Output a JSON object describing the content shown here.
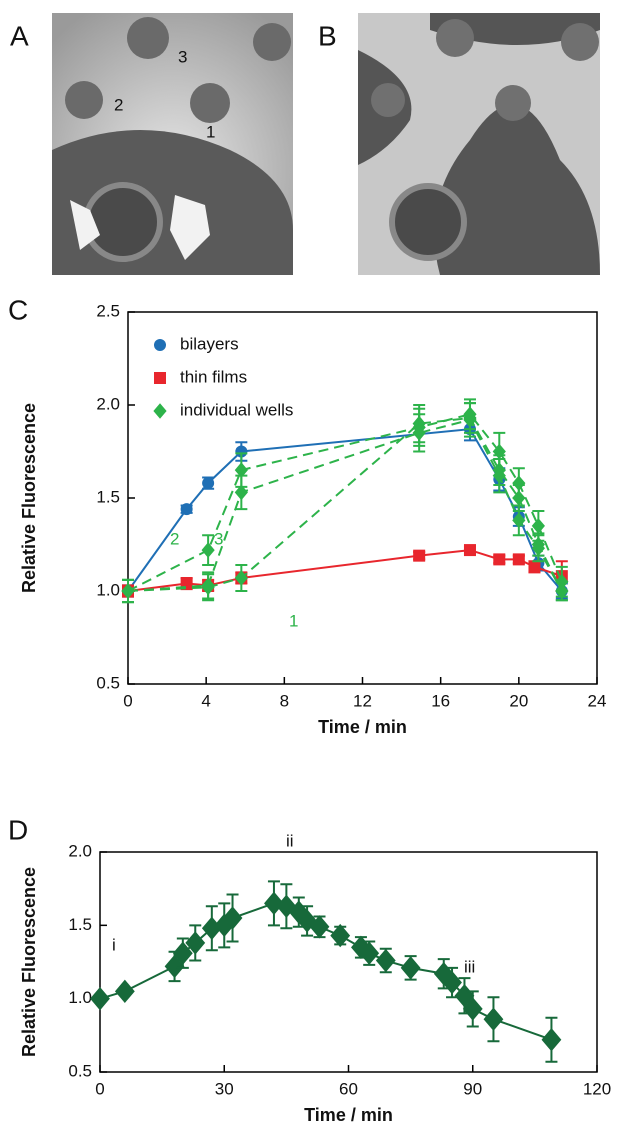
{
  "panels": {
    "a": "A",
    "b": "B",
    "c": "C",
    "d": "D"
  },
  "image_a_labels": [
    "3",
    "2",
    "1"
  ],
  "chart_data": [
    {
      "type": "line",
      "xlabel": "Time / min",
      "ylabel": "Relative Fluorescence",
      "xlim": [
        0,
        24
      ],
      "xticks": [
        0,
        4,
        8,
        12,
        16,
        20,
        24
      ],
      "ylim": [
        0.5,
        2.5
      ],
      "yticks": [
        0.5,
        {
          "value": 1,
          "label": "1.0"
        },
        1.5,
        {
          "value": 2,
          "label": "2.0"
        },
        2.5
      ],
      "legend": "upper left",
      "series": [
        {
          "name": "bilayers",
          "color": "#1f6fb5",
          "marker": "circle",
          "dashed": false,
          "lines": [
            {
              "x": [
                0,
                3,
                4.1,
                5.8,
                17.5,
                19,
                20,
                21,
                22.2
              ],
              "values": [
                1.0,
                1.44,
                1.58,
                1.75,
                1.87,
                1.6,
                1.4,
                1.15,
                1.0
              ],
              "errors": [
                0.03,
                0.02,
                0.03,
                0.05,
                0.06,
                0.06,
                0.05,
                0.04,
                0.04
              ]
            }
          ]
        },
        {
          "name": "thin films",
          "color": "#e8262d",
          "marker": "square",
          "dashed": false,
          "lines": [
            {
              "x": [
                0,
                3,
                4.1,
                5.8,
                14.9,
                17.5,
                19,
                20,
                20.8,
                22.2
              ],
              "values": [
                1.0,
                1.04,
                1.03,
                1.07,
                1.19,
                1.22,
                1.17,
                1.17,
                1.13,
                1.08
              ],
              "errors": [
                0.03,
                0.03,
                0.03,
                0.03,
                0.02,
                0.02,
                0.02,
                0.02,
                0.03,
                0.08
              ]
            }
          ]
        },
        {
          "name": "individual wells",
          "color": "#2db34a",
          "marker": "diamond",
          "dashed": true,
          "lines": [
            {
              "label": "1",
              "x": [
                0,
                4.1,
                5.8,
                14.9,
                17.5,
                19,
                20,
                21,
                22.2
              ],
              "values": [
                1.0,
                1.02,
                1.07,
                1.9,
                1.93,
                1.65,
                1.5,
                1.25,
                1.0
              ],
              "errors": [
                0.06,
                0.07,
                0.07,
                0.1,
                0.08,
                0.08,
                0.07,
                0.06,
                0.05
              ]
            },
            {
              "label": "2",
              "x": [
                0,
                4.1,
                5.8,
                14.9,
                17.5,
                19,
                20,
                21,
                22.2
              ],
              "values": [
                1.0,
                1.22,
                1.65,
                1.88,
                1.95,
                1.75,
                1.58,
                1.35,
                1.05
              ],
              "errors": [
                0.06,
                0.08,
                0.09,
                0.1,
                0.08,
                0.1,
                0.08,
                0.08,
                0.08
              ]
            },
            {
              "label": "3",
              "x": [
                0,
                4.1,
                5.8,
                14.9,
                17.5,
                19,
                20,
                21,
                22.2
              ],
              "values": [
                1.0,
                1.03,
                1.53,
                1.85,
                1.92,
                1.62,
                1.38,
                1.23,
                1.0
              ],
              "errors": [
                0.06,
                0.07,
                0.09,
                0.1,
                0.09,
                0.09,
                0.08,
                0.07,
                0.05
              ]
            }
          ]
        }
      ]
    },
    {
      "type": "line",
      "xlabel": "Time / min",
      "ylabel": "Relative Fluorescence",
      "xlim": [
        0,
        120
      ],
      "xticks": [
        0,
        30,
        60,
        90,
        120
      ],
      "ylim": [
        0.5,
        2.0
      ],
      "yticks": [
        0.5,
        {
          "value": 1,
          "label": "1.0"
        },
        1.5,
        {
          "value": 2,
          "label": "2.0"
        }
      ],
      "annotations": [
        "i",
        "ii",
        "iii"
      ],
      "series": [
        {
          "color": "#17693a",
          "marker": "diamond",
          "dashed": false,
          "lines": [
            {
              "x": [
                0,
                6,
                18,
                20,
                23,
                27,
                30,
                32,
                42,
                45,
                48,
                50,
                53,
                58,
                63,
                65,
                69,
                75,
                83,
                85,
                88,
                90,
                95,
                109
              ],
              "values": [
                1.0,
                1.05,
                1.22,
                1.31,
                1.38,
                1.48,
                1.5,
                1.55,
                1.65,
                1.63,
                1.59,
                1.53,
                1.49,
                1.43,
                1.35,
                1.31,
                1.26,
                1.21,
                1.17,
                1.11,
                1.02,
                0.93,
                0.86,
                0.72
              ],
              "errors": [
                0,
                0,
                0.1,
                0.1,
                0.12,
                0.15,
                0.15,
                0.16,
                0.15,
                0.15,
                0.1,
                0.1,
                0.07,
                0.06,
                0.07,
                0.08,
                0.08,
                0.08,
                0.1,
                0.1,
                0.12,
                0.12,
                0.15,
                0.15
              ]
            }
          ]
        }
      ]
    }
  ]
}
